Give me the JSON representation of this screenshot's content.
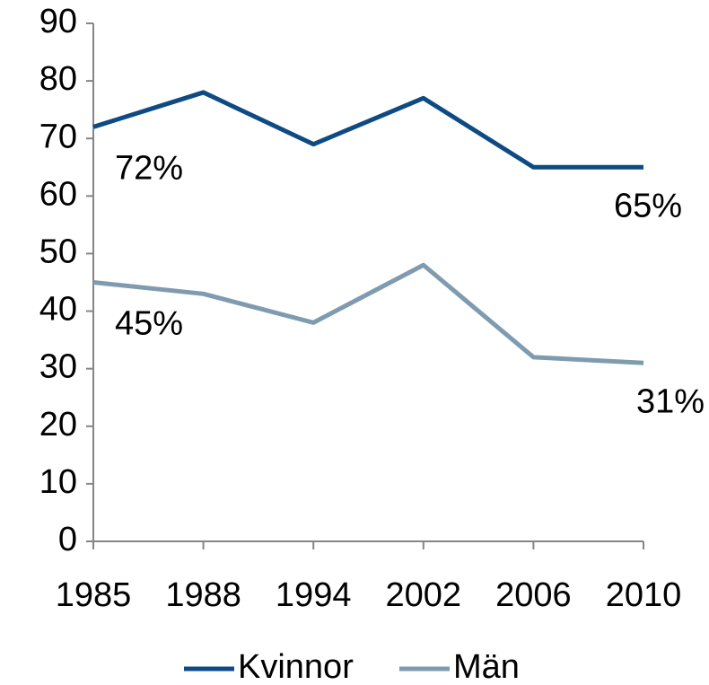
{
  "chart_data": {
    "type": "line",
    "categories": [
      "1985",
      "1988",
      "1994",
      "2002",
      "2006",
      "2010"
    ],
    "series": [
      {
        "name": "Kvinnor",
        "color": "#0e4a84",
        "values": [
          72,
          78,
          69,
          77,
          65,
          65
        ],
        "value_labels": [
          "72%",
          null,
          null,
          null,
          null,
          "65%"
        ]
      },
      {
        "name": "Män",
        "color": "#7f9bb0",
        "values": [
          45,
          43,
          38,
          48,
          32,
          31
        ],
        "value_labels": [
          "45%",
          null,
          null,
          null,
          null,
          "31%"
        ]
      }
    ],
    "ylim": [
      0,
      90
    ],
    "yticks": [
      0,
      10,
      20,
      30,
      40,
      50,
      60,
      70,
      80,
      90
    ],
    "grid": false,
    "legend": "bottom"
  }
}
